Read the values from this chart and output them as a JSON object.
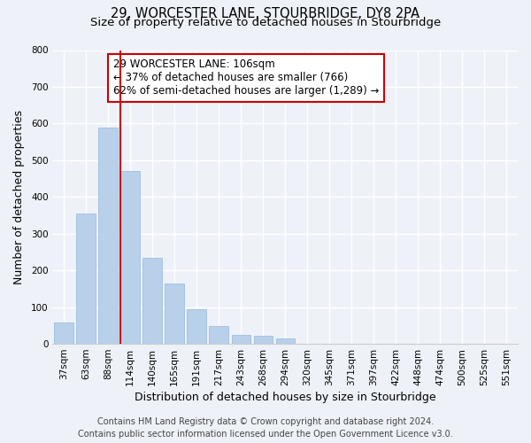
{
  "title_line1": "29, WORCESTER LANE, STOURBRIDGE, DY8 2PA",
  "title_line2": "Size of property relative to detached houses in Stourbridge",
  "xlabel": "Distribution of detached houses by size in Stourbridge",
  "ylabel": "Number of detached properties",
  "bar_labels": [
    "37sqm",
    "63sqm",
    "88sqm",
    "114sqm",
    "140sqm",
    "165sqm",
    "191sqm",
    "217sqm",
    "243sqm",
    "268sqm",
    "294sqm",
    "320sqm",
    "345sqm",
    "371sqm",
    "397sqm",
    "422sqm",
    "448sqm",
    "474sqm",
    "500sqm",
    "525sqm",
    "551sqm"
  ],
  "bar_values": [
    58,
    355,
    590,
    470,
    235,
    165,
    95,
    48,
    25,
    22,
    15,
    0,
    0,
    0,
    0,
    0,
    0,
    0,
    0,
    0,
    0
  ],
  "bar_color": "#b8d0ea",
  "bar_edge_color": "#93b8d8",
  "vline_color": "#cc0000",
  "annotation_line1": "29 WORCESTER LANE: 106sqm",
  "annotation_line2": "← 37% of detached houses are smaller (766)",
  "annotation_line3": "62% of semi-detached houses are larger (1,289) →",
  "annotation_box_color": "#ffffff",
  "annotation_box_edge": "#cc0000",
  "ylim": [
    0,
    800
  ],
  "yticks": [
    0,
    100,
    200,
    300,
    400,
    500,
    600,
    700,
    800
  ],
  "footer_line1": "Contains HM Land Registry data © Crown copyright and database right 2024.",
  "footer_line2": "Contains public sector information licensed under the Open Government Licence v3.0.",
  "background_color": "#eef2f8",
  "plot_background": "#eef2f8",
  "grid_color": "#ffffff",
  "title_fontsize": 10.5,
  "subtitle_fontsize": 9.5,
  "axis_label_fontsize": 9,
  "tick_fontsize": 7.5,
  "annot_fontsize": 8.5,
  "footer_fontsize": 7
}
